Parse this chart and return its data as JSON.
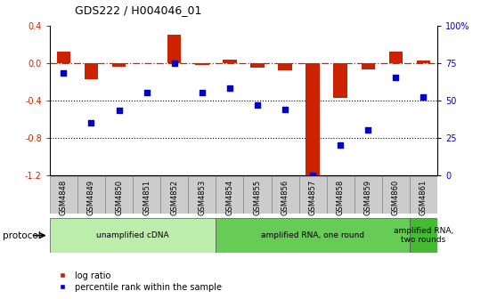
{
  "title": "GDS222 / H004046_01",
  "samples": [
    "GSM4848",
    "GSM4849",
    "GSM4850",
    "GSM4851",
    "GSM4852",
    "GSM4853",
    "GSM4854",
    "GSM4855",
    "GSM4856",
    "GSM4857",
    "GSM4858",
    "GSM4859",
    "GSM4860",
    "GSM4861"
  ],
  "log_ratio": [
    0.12,
    -0.18,
    -0.04,
    0.0,
    0.3,
    -0.02,
    0.03,
    -0.05,
    -0.08,
    -1.2,
    -0.38,
    -0.07,
    0.12,
    0.02
  ],
  "percentile": [
    68,
    35,
    43,
    55,
    75,
    55,
    58,
    47,
    44,
    0,
    20,
    30,
    65,
    52
  ],
  "ylim_left": [
    -1.2,
    0.4
  ],
  "ylim_right": [
    0,
    100
  ],
  "yticks_left": [
    -1.2,
    -0.8,
    -0.4,
    0.0,
    0.4
  ],
  "yticks_right": [
    0,
    25,
    50,
    75,
    100
  ],
  "ytick_labels_right": [
    "0",
    "25",
    "50",
    "75",
    "100%"
  ],
  "hline_y": 0.0,
  "dotted_lines": [
    -0.4,
    -0.8
  ],
  "bar_color": "#cc2200",
  "dot_color": "#0000cc",
  "bar_width": 0.5,
  "protocol_groups": [
    {
      "label": "unamplified cDNA",
      "start": 0,
      "end": 5,
      "color": "#bbeeaa"
    },
    {
      "label": "amplified RNA, one round",
      "start": 6,
      "end": 12,
      "color": "#66cc55"
    },
    {
      "label": "amplified RNA,\ntwo rounds",
      "start": 13,
      "end": 13,
      "color": "#44bb33"
    }
  ],
  "protocol_label": "protocol",
  "legend_items": [
    {
      "label": "log ratio",
      "color": "#cc2200"
    },
    {
      "label": "percentile rank within the sample",
      "color": "#0000cc"
    }
  ],
  "background_color": "#ffffff",
  "label_bg_color": "#cccccc"
}
